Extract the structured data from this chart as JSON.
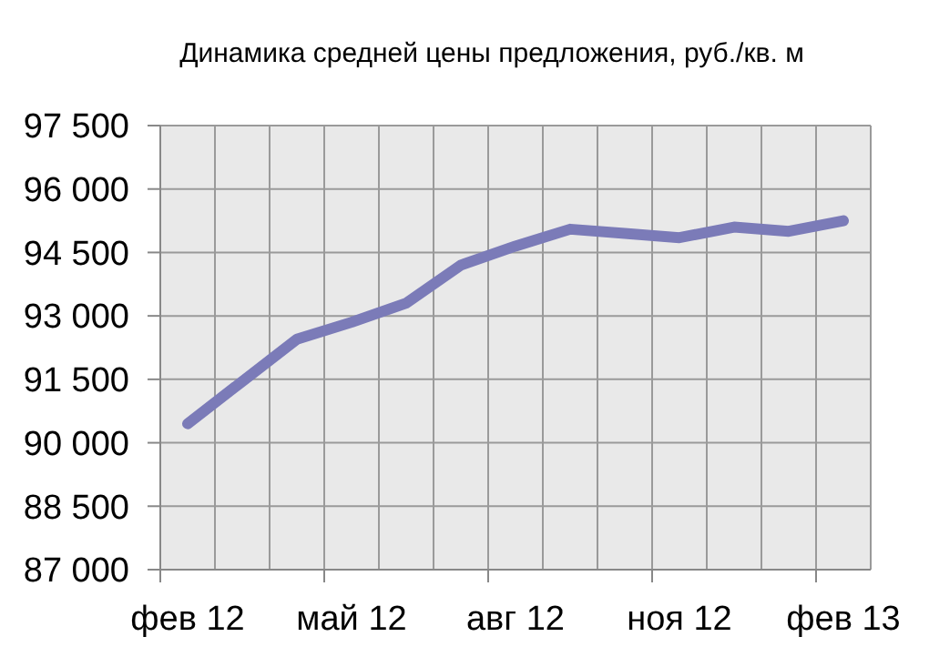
{
  "chart_data": {
    "type": "line",
    "title": "Динамика средней цены предложения, руб./кв. м",
    "categories": [
      "фев 12",
      null,
      null,
      "май 12",
      null,
      null,
      "авг 12",
      null,
      null,
      "ноя 12",
      null,
      null,
      "фев 13"
    ],
    "series": [
      {
        "color": "#7b7bb8",
        "values": [
          90450,
          91450,
          92450,
          92850,
          93300,
          94200,
          94650,
          95050,
          94950,
          94850,
          95100,
          95000,
          95250
        ]
      }
    ],
    "ylim": [
      87000,
      97500
    ],
    "yticks": [
      {
        "value": 87000,
        "label": "87 000"
      },
      {
        "value": 88500,
        "label": "88 500"
      },
      {
        "value": 90000,
        "label": "90 000"
      },
      {
        "value": 91500,
        "label": "91 500"
      },
      {
        "value": 93000,
        "label": "93 000"
      },
      {
        "value": 94500,
        "label": "94 500"
      },
      {
        "value": 96000,
        "label": "96 000"
      },
      {
        "value": 97500,
        "label": "97 500"
      }
    ],
    "grid": true,
    "marker": "none",
    "line_style": "solid"
  }
}
